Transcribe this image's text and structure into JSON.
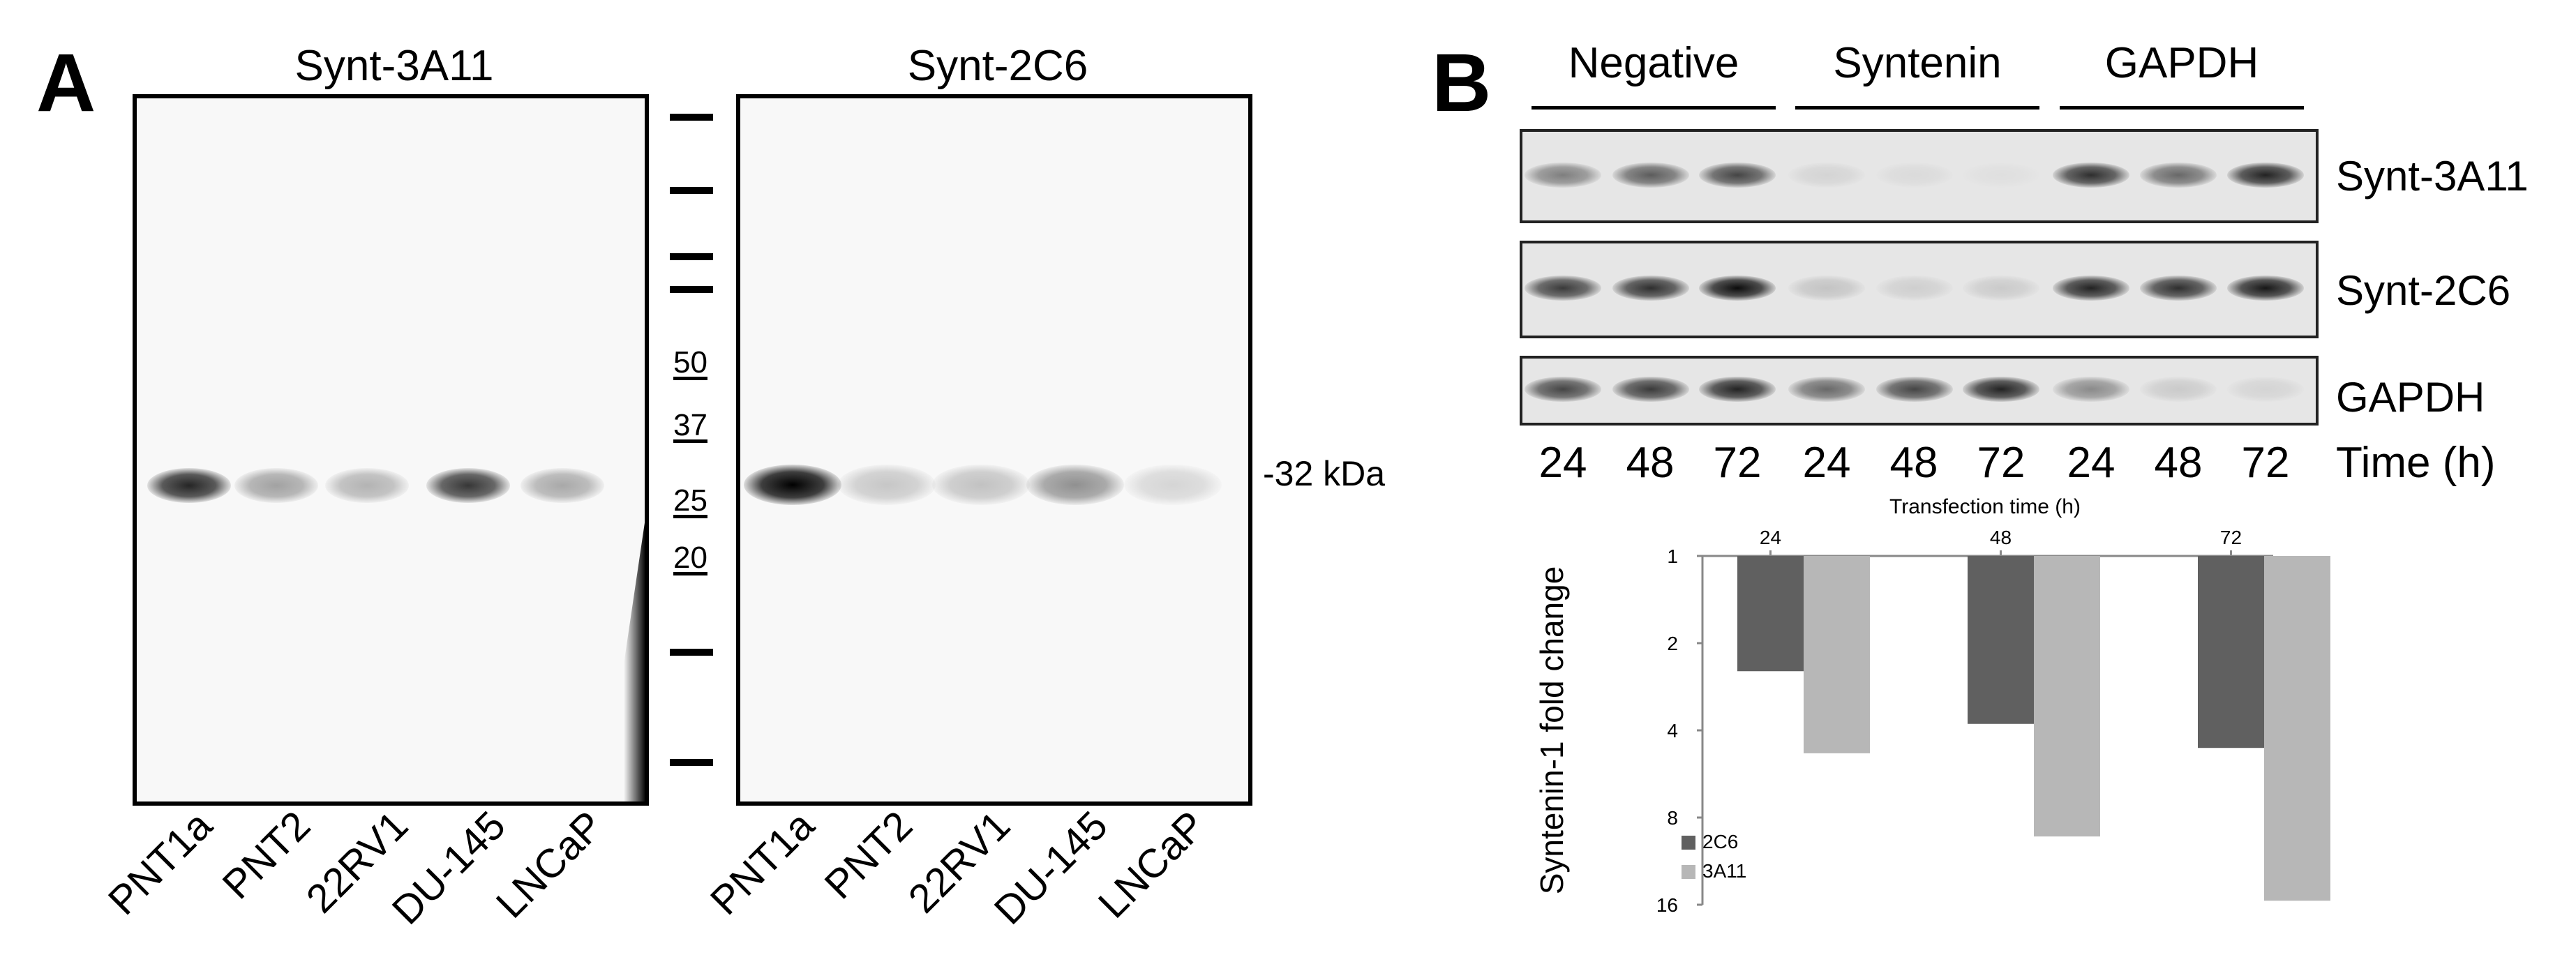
{
  "panelA": {
    "letter": "A",
    "blot1_title": "Synt-3A11",
    "blot2_title": "Synt-2C6",
    "lanes": [
      "PNT1a",
      "PNT2",
      "22RV1",
      "DU-145",
      "LNCaP"
    ],
    "markers": [
      "50",
      "37",
      "25",
      "20"
    ],
    "size_label": "-32 kDa",
    "blot1_intensity": [
      0.85,
      0.35,
      0.28,
      0.78,
      0.32
    ],
    "blot2_intensity": [
      1.0,
      0.2,
      0.22,
      0.42,
      0.14
    ]
  },
  "panelB": {
    "letter": "B",
    "groups": [
      "Negative",
      "Syntenin",
      "GAPDH"
    ],
    "rows": [
      "Synt-3A11",
      "Synt-2C6",
      "GAPDH"
    ],
    "times": [
      "24",
      "48",
      "72",
      "24",
      "48",
      "72",
      "24",
      "48",
      "72"
    ],
    "time_label": "Time (h)",
    "row_intensity": [
      [
        0.45,
        0.6,
        0.7,
        0.08,
        0.05,
        0.03,
        0.8,
        0.55,
        0.85
      ],
      [
        0.75,
        0.8,
        0.95,
        0.15,
        0.1,
        0.12,
        0.85,
        0.8,
        0.9
      ],
      [
        0.7,
        0.75,
        0.85,
        0.55,
        0.7,
        0.85,
        0.4,
        0.12,
        0.08
      ]
    ]
  },
  "chart_data": {
    "type": "bar",
    "xlabel": "Transfection time (h)",
    "ylabel": "Syntenin-1 fold change",
    "categories": [
      "24",
      "48",
      "72"
    ],
    "yticks": [
      "1",
      "2",
      "4",
      "8",
      "16"
    ],
    "ylim": [
      1,
      16
    ],
    "yscale": "log2",
    "legend_placement": "bottom-left",
    "series": [
      {
        "name": "2C6",
        "values": [
          2.5,
          3.8,
          4.6
        ],
        "color": "#606060"
      },
      {
        "name": "3A11",
        "values": [
          4.8,
          9.3,
          15.5
        ],
        "color": "#b7b7b7"
      }
    ]
  }
}
